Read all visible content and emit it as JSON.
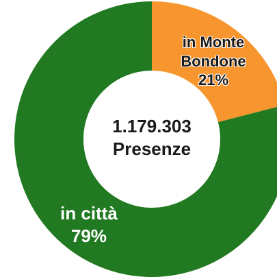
{
  "chart_data": {
    "type": "donut",
    "categories": [
      "in Monte Bondone",
      "in città"
    ],
    "values": [
      21,
      79
    ],
    "value_labels": [
      "21%",
      "79%"
    ],
    "colors": [
      "#f7962e",
      "#217a21"
    ],
    "total_label": "1.179.303",
    "total_name": "Presenze"
  }
}
